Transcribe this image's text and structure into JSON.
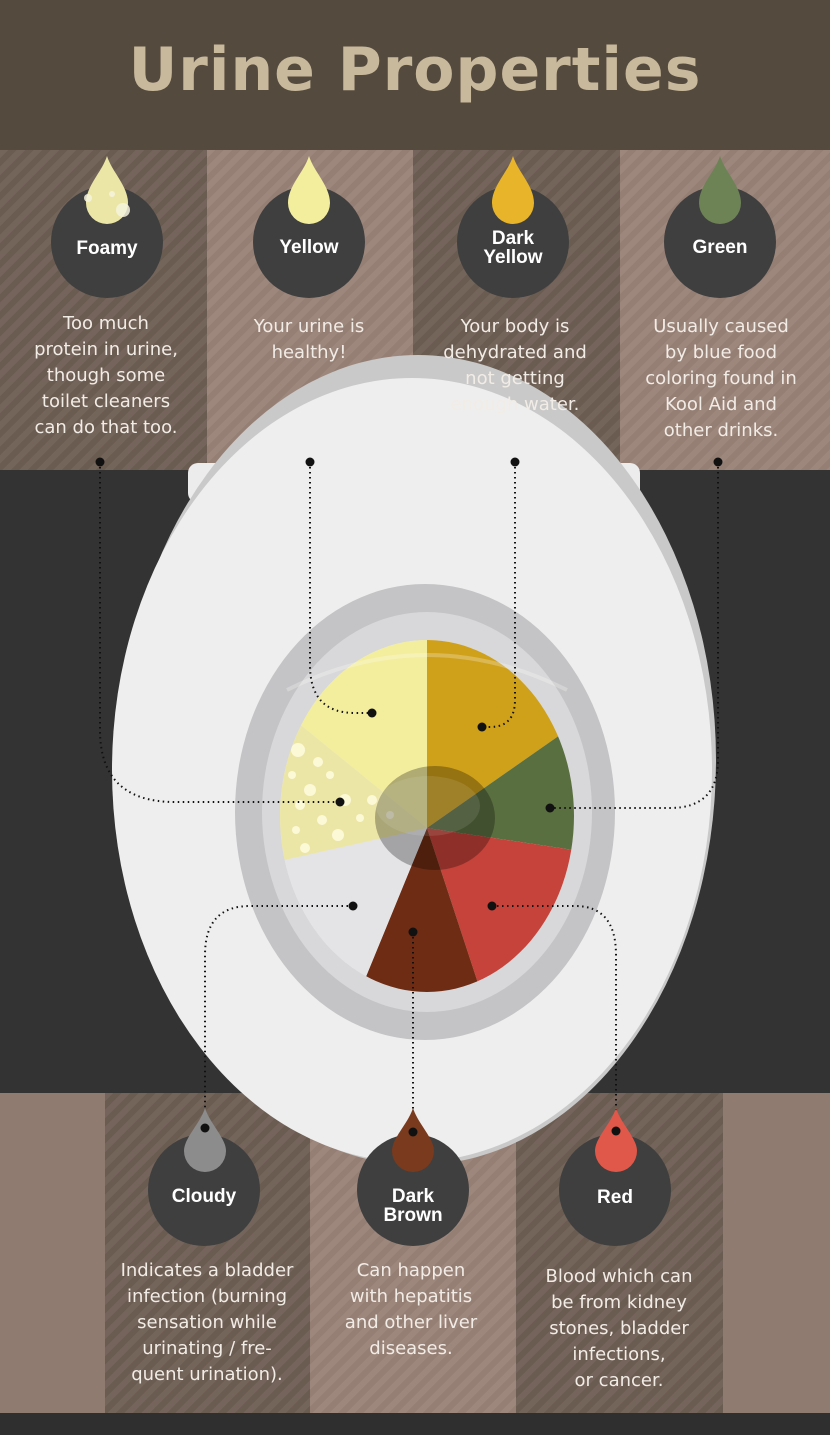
{
  "title": "Urine Properties",
  "colors": {
    "header_bg": "#544b3e",
    "title": "#c8b89c",
    "circle": "#3f3f3f",
    "foamy": "#ece6a6",
    "yellow": "#f3ee9e",
    "dark_yellow": "#e8b52a",
    "green": "#6d8356",
    "cloudy": "#8c8c8c",
    "dark_brown": "#7a3a1e",
    "red": "#e0584a"
  },
  "types": {
    "foamy": {
      "label": "Foamy",
      "desc": "Too much\nprotein in urine,\nthough some\ntoilet cleaners\ncan do that too.",
      "icon": "foamy-drop-icon"
    },
    "yellow": {
      "label": "Yellow",
      "desc": "Your urine is\nhealthy!",
      "icon": "yellow-drop-icon"
    },
    "dark_yellow": {
      "label": "Dark\nYellow",
      "desc": "Your body is\ndehydrated and\nnot getting\nenough water.",
      "icon": "dark-yellow-drop-icon"
    },
    "green": {
      "label": "Green",
      "desc": "Usually caused\nby blue food\ncoloring found in\nKool Aid and\nother drinks.",
      "icon": "green-drop-icon"
    },
    "cloudy": {
      "label": "Cloudy",
      "desc": "Indicates a bladder\ninfection (burning\nsensation while\nurinating / fre-\nquent urination).",
      "icon": "cloudy-drop-icon"
    },
    "dark_brown": {
      "label": "Dark\nBrown",
      "desc": "Can happen\nwith hepatitis\nand other liver\ndiseases.",
      "icon": "dark-brown-drop-icon"
    },
    "red": {
      "label": "Red",
      "desc": "Blood which can\nbe from kidney\nstones, bladder\ninfections,\nor cancer.",
      "icon": "red-drop-icon"
    }
  },
  "illustration": "toilet-bowl-icon"
}
